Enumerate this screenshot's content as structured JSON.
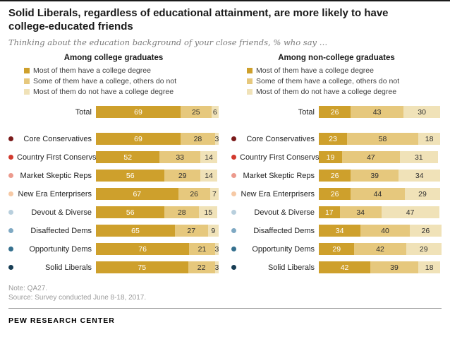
{
  "title": "Solid Liberals, regardless of educational attainment, are more likely to have college-educated friends",
  "subtitle": "Thinking about the education background of your close friends, % who say …",
  "note": "Note: QA27.",
  "source": "Source: Survey conducted June 8-18, 2017.",
  "footer": "PEW RESEARCH CENTER",
  "chart_data": {
    "type": "bar",
    "stacked": true,
    "orientation": "horizontal",
    "unit": "%",
    "title": "Solid Liberals, regardless of educational attainment, are more likely to have college-educated friends",
    "subtitle": "Thinking about the education background of your close friends, % who say …",
    "legend": [
      "Most of them have a college degree",
      "Some of them have a college, others do not",
      "Most of them do not have a college degree"
    ],
    "legend_position": "top-left",
    "segment_colors": [
      "#CEA02C",
      "#E6C87D",
      "#F0E2B8"
    ],
    "value_text_colors": [
      "#ffffff",
      "#2e2e2e",
      "#2e2e2e"
    ],
    "categories": [
      "Total",
      "Core Conservatives",
      "Country First Conservs",
      "Market Skeptic Reps",
      "New Era Enterprisers",
      "Devout & Diverse",
      "Disaffected Dems",
      "Opportunity Dems",
      "Solid Liberals"
    ],
    "category_dot_colors": [
      "",
      "#7a1a1a",
      "#d23a2e",
      "#ec9a8d",
      "#f6c9a5",
      "#b8cfdd",
      "#7fa9c3",
      "#35708e",
      "#173d54"
    ],
    "xlim": [
      0,
      100
    ],
    "panels": [
      {
        "header": "Among college graduates",
        "series": [
          {
            "name": "Most of them have a college degree",
            "values": [
              69,
              69,
              52,
              56,
              67,
              56,
              65,
              76,
              75
            ]
          },
          {
            "name": "Some of them have a college, others do not",
            "values": [
              25,
              28,
              33,
              29,
              26,
              28,
              27,
              21,
              22
            ]
          },
          {
            "name": "Most of them do not have a college degree",
            "values": [
              6,
              3,
              14,
              14,
              7,
              15,
              9,
              3,
              3
            ]
          }
        ]
      },
      {
        "header": "Among non-college graduates",
        "series": [
          {
            "name": "Most of them have a college degree",
            "values": [
              26,
              23,
              19,
              26,
              26,
              17,
              34,
              29,
              42
            ]
          },
          {
            "name": "Some of them have a college, others do not",
            "values": [
              43,
              58,
              47,
              39,
              44,
              34,
              40,
              42,
              39
            ]
          },
          {
            "name": "Most of them do not have a college degree",
            "values": [
              30,
              18,
              31,
              34,
              29,
              47,
              26,
              29,
              18
            ]
          }
        ]
      }
    ]
  }
}
